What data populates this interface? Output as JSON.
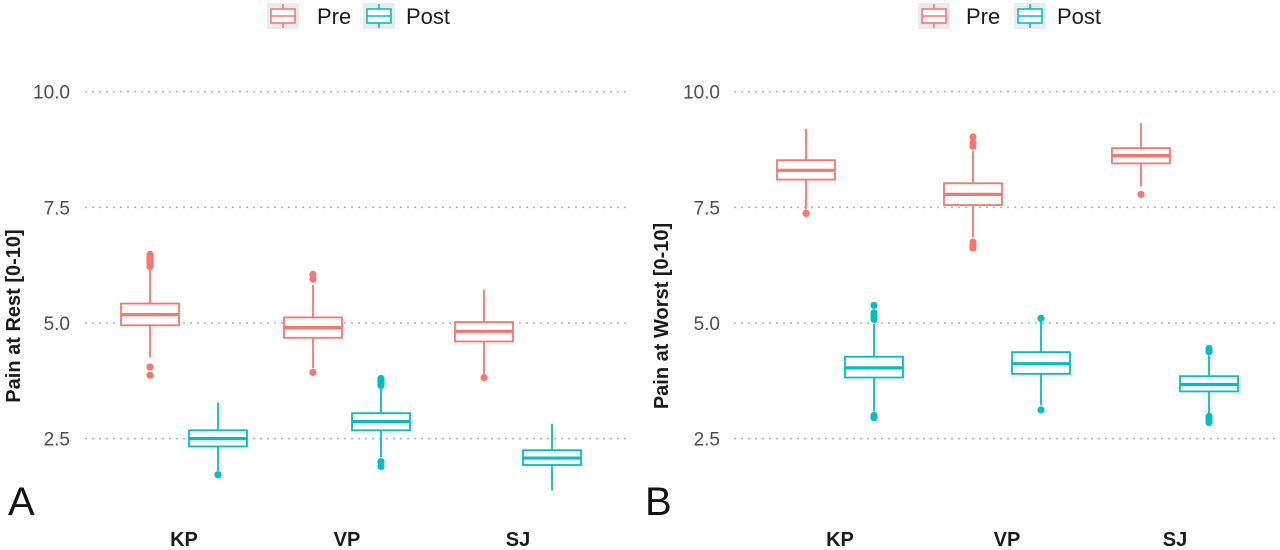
{
  "legend": {
    "entries": [
      {
        "name": "Pre",
        "color": "#F8766D"
      },
      {
        "name": "Post",
        "color": "#00BFC4"
      }
    ]
  },
  "chart_data": [
    {
      "type": "box",
      "panel_label": "A",
      "title": "",
      "xlabel": "",
      "ylabel": "Pain at Rest [0-10]",
      "ylim": [
        1.0,
        10.75
      ],
      "yticks": [
        "2.5",
        "5.0",
        "7.5",
        "10.0"
      ],
      "grid": "horizontal dotted",
      "legend_position": "top",
      "categories": [
        "KP",
        "VP",
        "SJ"
      ],
      "series": [
        {
          "name": "Pre",
          "color": "#F8766D",
          "boxes": [
            {
              "category": "KP",
              "q1": 4.95,
              "median": 5.18,
              "q3": 5.42,
              "whisker_low": 4.25,
              "whisker_high": 6.15,
              "outliers": [
                4.05,
                3.87,
                6.22,
                6.28,
                6.33,
                6.38,
                6.44,
                6.48
              ]
            },
            {
              "category": "VP",
              "q1": 4.68,
              "median": 4.9,
              "q3": 5.12,
              "whisker_low": 4.02,
              "whisker_high": 5.82,
              "outliers": [
                3.93,
                5.95,
                6.05
              ]
            },
            {
              "category": "SJ",
              "q1": 4.6,
              "median": 4.82,
              "q3": 5.02,
              "whisker_low": 3.9,
              "whisker_high": 5.72,
              "outliers": [
                3.82
              ]
            }
          ]
        },
        {
          "name": "Post",
          "color": "#00BFC4",
          "boxes": [
            {
              "category": "KP",
              "q1": 2.33,
              "median": 2.5,
              "q3": 2.68,
              "whisker_low": 1.8,
              "whisker_high": 3.28,
              "outliers": [
                1.72
              ]
            },
            {
              "category": "VP",
              "q1": 2.68,
              "median": 2.87,
              "q3": 3.05,
              "whisker_low": 2.1,
              "whisker_high": 3.6,
              "outliers": [
                2.0,
                1.9,
                3.65,
                3.7,
                3.75,
                3.8
              ]
            },
            {
              "category": "SJ",
              "q1": 1.93,
              "median": 2.08,
              "q3": 2.25,
              "whisker_low": 1.38,
              "whisker_high": 2.82,
              "outliers": []
            }
          ]
        }
      ]
    },
    {
      "type": "box",
      "panel_label": "B",
      "title": "",
      "xlabel": "",
      "ylabel": "Pain at Worst [0-10]",
      "ylim": [
        1.0,
        10.75
      ],
      "yticks": [
        "2.5",
        "5.0",
        "7.5",
        "10.0"
      ],
      "grid": "horizontal dotted",
      "legend_position": "top",
      "categories": [
        "KP",
        "VP",
        "SJ"
      ],
      "series": [
        {
          "name": "Pre",
          "color": "#F8766D",
          "boxes": [
            {
              "category": "KP",
              "q1": 8.1,
              "median": 8.3,
              "q3": 8.52,
              "whisker_low": 7.45,
              "whisker_high": 9.2,
              "outliers": [
                7.37
              ]
            },
            {
              "category": "VP",
              "q1": 7.55,
              "median": 7.78,
              "q3": 8.02,
              "whisker_low": 6.85,
              "whisker_high": 8.72,
              "outliers": [
                6.75,
                6.68,
                6.62,
                8.82,
                8.9,
                9.02
              ]
            },
            {
              "category": "SJ",
              "q1": 8.45,
              "median": 8.62,
              "q3": 8.78,
              "whisker_low": 7.95,
              "whisker_high": 9.32,
              "outliers": [
                7.78
              ]
            }
          ]
        },
        {
          "name": "Post",
          "color": "#00BFC4",
          "boxes": [
            {
              "category": "KP",
              "q1": 3.82,
              "median": 4.03,
              "q3": 4.27,
              "whisker_low": 3.1,
              "whisker_high": 4.98,
              "outliers": [
                3.0,
                2.95,
                5.08,
                5.15,
                5.22,
                5.38
              ]
            },
            {
              "category": "VP",
              "q1": 3.9,
              "median": 4.12,
              "q3": 4.37,
              "whisker_low": 3.22,
              "whisker_high": 5.05,
              "outliers": [
                3.12,
                5.1
              ]
            },
            {
              "category": "SJ",
              "q1": 3.52,
              "median": 3.67,
              "q3": 3.85,
              "whisker_low": 3.05,
              "whisker_high": 4.3,
              "outliers": [
                2.98,
                2.92,
                2.85,
                4.38,
                4.45
              ]
            }
          ]
        }
      ]
    }
  ]
}
